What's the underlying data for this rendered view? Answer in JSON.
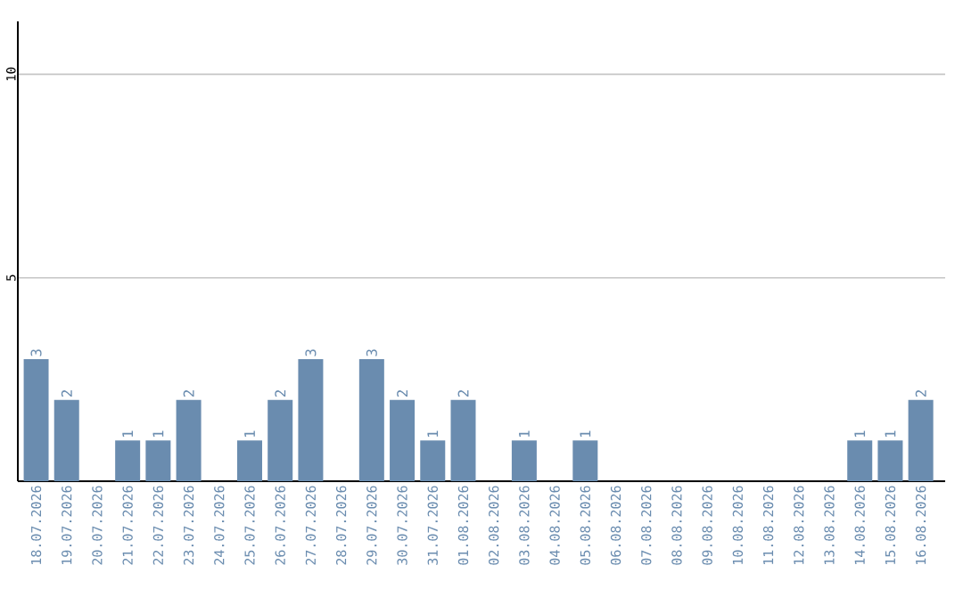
{
  "chart_data": {
    "type": "bar",
    "categories": [
      "18.07.2026",
      "19.07.2026",
      "20.07.2026",
      "21.07.2026",
      "22.07.2026",
      "23.07.2026",
      "24.07.2026",
      "25.07.2026",
      "26.07.2026",
      "27.07.2026",
      "28.07.2026",
      "29.07.2026",
      "30.07.2026",
      "31.07.2026",
      "01.08.2026",
      "02.08.2026",
      "03.08.2026",
      "04.08.2026",
      "05.08.2026",
      "06.08.2026",
      "07.08.2026",
      "08.08.2026",
      "09.08.2026",
      "10.08.2026",
      "11.08.2026",
      "12.08.2026",
      "13.08.2026",
      "14.08.2026",
      "15.08.2026",
      "16.08.2026"
    ],
    "values": [
      3,
      2,
      0,
      1,
      1,
      2,
      0,
      1,
      2,
      3,
      0,
      3,
      2,
      1,
      2,
      0,
      1,
      0,
      1,
      0,
      0,
      0,
      0,
      0,
      0,
      0,
      0,
      1,
      1,
      2
    ],
    "value_labels": [
      "3",
      "2",
      null,
      "1",
      "1",
      "2",
      null,
      "1",
      "2",
      "3",
      null,
      "3",
      "2",
      "1",
      "2",
      null,
      "1",
      null,
      "1",
      null,
      null,
      null,
      null,
      null,
      null,
      null,
      null,
      "1",
      "1",
      "2"
    ],
    "color": "#6a8caf",
    "ylim": [
      0,
      11.3
    ],
    "yticks": [
      5,
      10
    ],
    "grid": "y"
  }
}
